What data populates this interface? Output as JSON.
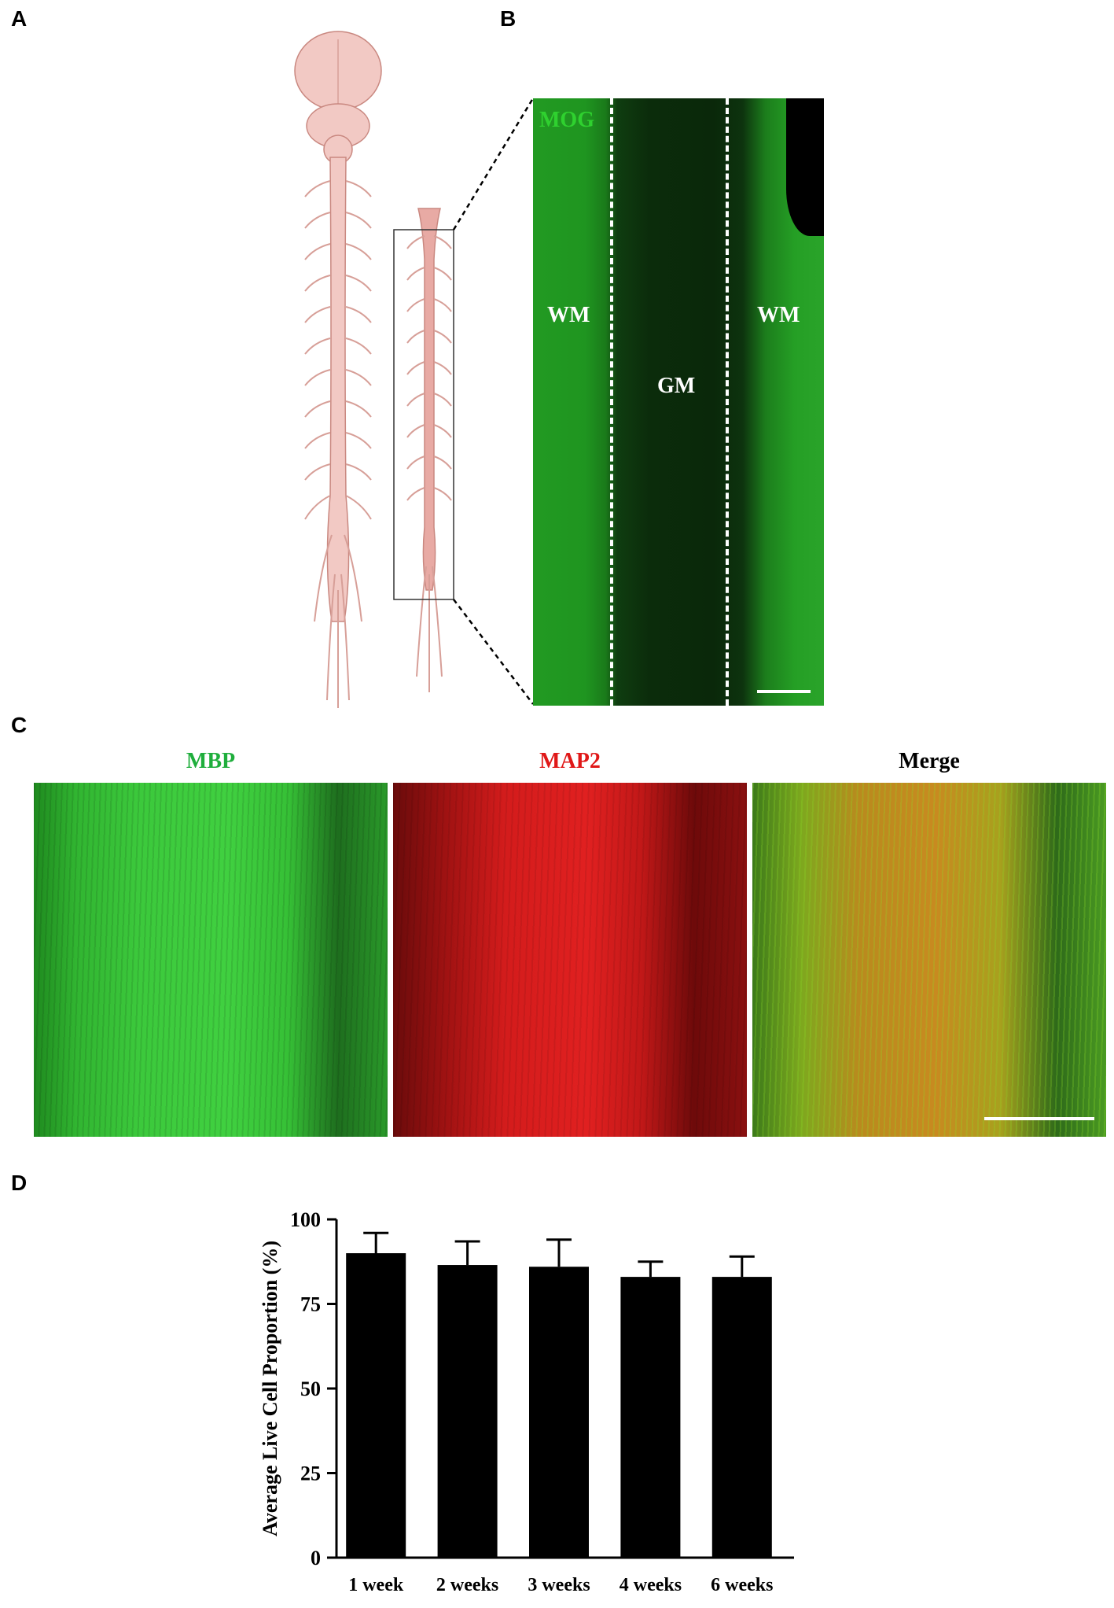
{
  "panels": {
    "a": {
      "letter": "A"
    },
    "b": {
      "letter": "B",
      "stain_label": "MOG",
      "region_left": "WM",
      "region_center": "GM",
      "region_right": "WM"
    },
    "c": {
      "letter": "C",
      "channels": [
        {
          "label": "MBP",
          "color": "#1fae3c"
        },
        {
          "label": "MAP2",
          "color": "#e01818"
        },
        {
          "label": "Merge",
          "color": "#000000"
        }
      ]
    },
    "d": {
      "letter": "D"
    }
  },
  "colors": {
    "mog_green": "#2fd12f",
    "anatomy_fill": "#f2c9c4",
    "anatomy_stroke": "#c98880",
    "bar_fill": "#000000"
  },
  "chart_data": {
    "type": "bar",
    "categories": [
      "1 week",
      "2 weeks",
      "3 weeks",
      "4 weeks",
      "6 weeks"
    ],
    "values": [
      90,
      86.5,
      86,
      83,
      83
    ],
    "error": [
      6,
      7,
      8,
      4.5,
      6
    ],
    "ylabel": "Average Live Cell Proportion (%)",
    "xlabel": "",
    "ylim": [
      0,
      100
    ],
    "yticks": [
      0,
      25,
      50,
      75,
      100
    ],
    "grid": false
  }
}
